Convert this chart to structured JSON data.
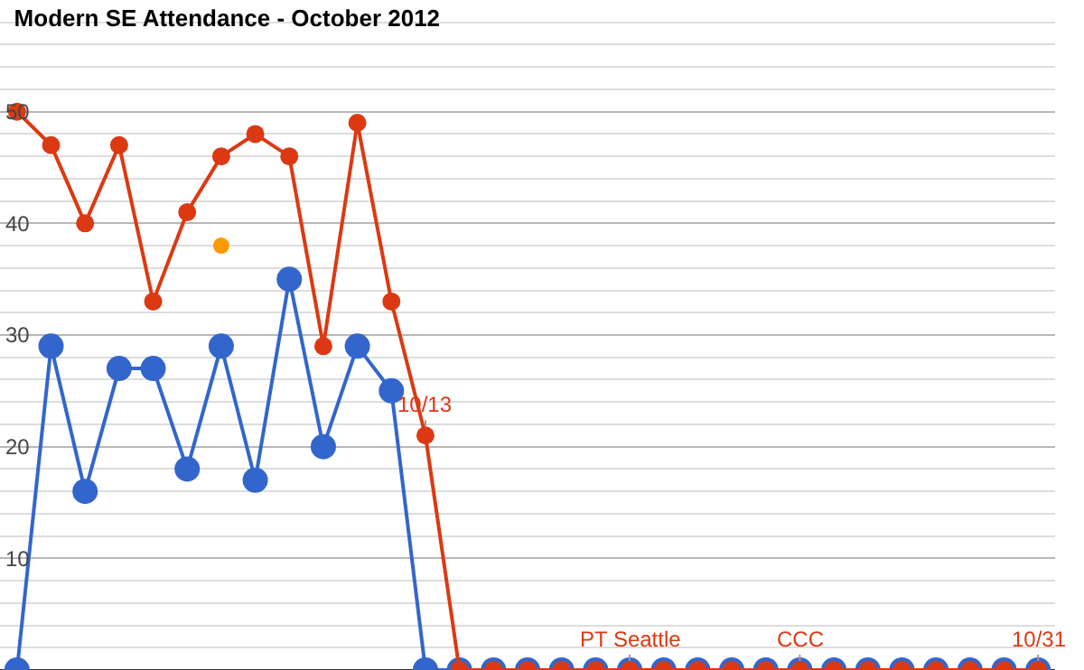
{
  "chart_data": {
    "type": "line",
    "title": "Modern SE Attendance - October 2012",
    "categories": [
      null,
      null,
      null,
      null,
      null,
      null,
      null,
      null,
      null,
      null,
      null,
      null,
      null,
      null,
      null,
      null,
      null,
      null,
      null,
      null,
      null,
      null,
      null,
      null,
      null,
      null,
      null,
      null,
      null,
      null,
      null
    ],
    "series": [
      {
        "color": "#3366cc",
        "values": [
          0,
          29,
          16,
          27,
          27,
          18,
          29,
          17,
          35,
          20,
          29,
          25,
          0,
          0,
          0,
          0,
          0,
          0,
          0,
          0,
          0,
          0,
          0,
          0,
          0,
          0,
          0,
          0,
          0,
          0,
          0
        ]
      },
      {
        "color": "#dc3912",
        "values": [
          50,
          47,
          40,
          47,
          33,
          41,
          46,
          48,
          46,
          29,
          49,
          33,
          21,
          0,
          0,
          0,
          0,
          0,
          0,
          0,
          0,
          0,
          0,
          0,
          0,
          0,
          0,
          0,
          0,
          0,
          0
        ],
        "value_labels": [
          null,
          null,
          null,
          null,
          null,
          null,
          null,
          null,
          null,
          null,
          null,
          null,
          "10/13",
          null,
          null,
          null,
          null,
          null,
          "PT Seattle",
          null,
          null,
          null,
          null,
          "CCC",
          null,
          null,
          null,
          null,
          null,
          null,
          "10/31"
        ]
      },
      {
        "type": "scatter",
        "color": "#ff9900",
        "values": [
          null,
          null,
          null,
          null,
          null,
          null,
          38,
          null,
          null,
          null,
          null,
          null,
          null,
          null,
          null,
          null,
          null,
          null,
          null,
          null,
          null,
          null,
          null,
          null,
          null,
          null,
          null,
          null,
          null,
          null,
          null
        ]
      }
    ],
    "ylim": [
      0,
      60
    ],
    "yticks": [
      {
        "value": 0,
        "label": null
      },
      10,
      20,
      30,
      40,
      50,
      {
        "value": 60,
        "label": null
      }
    ],
    "tick_labels": "y",
    "grid": "y",
    "marker": "circle",
    "line_style": "solid"
  }
}
